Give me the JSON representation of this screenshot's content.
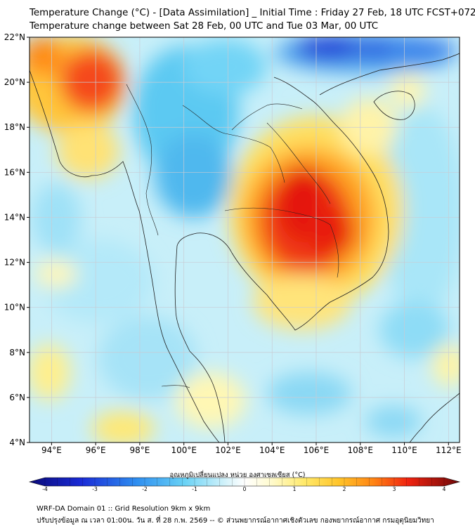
{
  "title": {
    "line1": "Temperature Change (°C) - [Data Assimilation] _ Initial Time : Friday 27 Feb, 18 UTC FCST+072",
    "line2": "Temperature change between Sat 28 Feb, 00 UTC and Tue 03 Mar, 00 UTC"
  },
  "map": {
    "lon_range": [
      93,
      112.5
    ],
    "lat_range": [
      4,
      22
    ],
    "lat_labels": [
      "22°N",
      "20°N",
      "18°N",
      "16°N",
      "14°N",
      "12°N",
      "10°N",
      "8°N",
      "6°N",
      "4°N"
    ],
    "lon_labels": [
      "94°E",
      "96°E",
      "98°E",
      "100°E",
      "102°E",
      "104°E",
      "106°E",
      "108°E",
      "110°E",
      "112°E"
    ],
    "lat_values": [
      22,
      20,
      18,
      16,
      14,
      12,
      10,
      8,
      6,
      4
    ],
    "lon_values": [
      94,
      96,
      98,
      100,
      102,
      104,
      106,
      108,
      110,
      112
    ]
  },
  "colorbar": {
    "label": "อุณหภูมิเปลี่ยนแปลง หน่วย องศาเซลเซียส (°C)",
    "min": -4,
    "max": 4,
    "tick_values": [
      -4,
      -3,
      -2,
      -1,
      0,
      1,
      2,
      3,
      4
    ],
    "tick_labels": [
      "-4",
      "-3",
      "-2",
      "-1",
      "0",
      "1",
      "2",
      "3",
      "4"
    ]
  },
  "footer": {
    "line1": "WRF-DA Domain 01 :: Grid Resolution 9km x 9km",
    "line2": "ปรับปรุงข้อมูล ณ เวลา 01:00น. วัน ส. ที่ 28 ก.พ. 2569 -- © ส่วนพยากรณ์อากาศเชิงตัวเลข กองพยากรณ์อากาศ กรมอุตุนิยมวิทยา"
  },
  "colors": {
    "blue_dark": "#1a2bd6",
    "blue": "#2f8ff0",
    "cyan": "#69d2f5",
    "light_cyan": "#d8f4fb",
    "white": "#ffffff",
    "yellow": "#fff4a0",
    "orange": "#ffa21a",
    "red": "#f02310",
    "dark_red": "#8b0c0c",
    "coast": "#202020",
    "grid": "#c8ccd4"
  }
}
